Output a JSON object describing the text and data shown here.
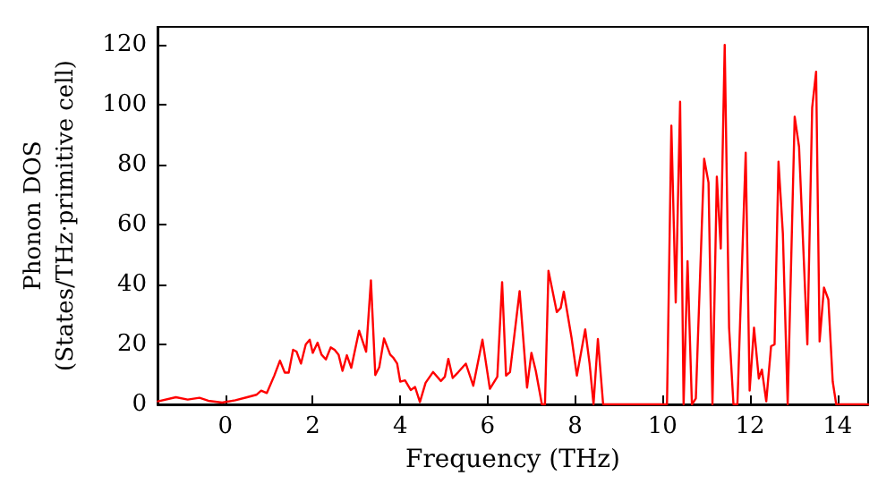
{
  "chart_data": {
    "type": "line",
    "xlabel": "Frequency (THz)",
    "ylabel": "Phonon DOS\n(States/THz·primitive cell)",
    "xlim": [
      -1.55,
      14.7
    ],
    "xticks": [
      0,
      2,
      4,
      6,
      8,
      10,
      12,
      14
    ],
    "ylim": [
      0,
      126
    ],
    "yticks": [
      0,
      20,
      40,
      60,
      80,
      100,
      120
    ],
    "marker": "none",
    "line_style": "solid",
    "series": [
      {
        "color": "#ff0000",
        "x": [
          -1.54,
          -1.13,
          -0.86,
          -0.59,
          -0.39,
          -0.07,
          0.23,
          0.5,
          0.71,
          0.82,
          0.95,
          1.12,
          1.25,
          1.36,
          1.45,
          1.55,
          1.63,
          1.73,
          1.84,
          1.93,
          2.0,
          2.11,
          2.2,
          2.3,
          2.41,
          2.5,
          2.59,
          2.68,
          2.78,
          2.88,
          3.06,
          3.22,
          3.33,
          3.43,
          3.52,
          3.63,
          3.77,
          3.84,
          3.93,
          4.0,
          4.11,
          4.24,
          4.34,
          4.45,
          4.58,
          4.75,
          4.93,
          5.02,
          5.1,
          5.2,
          5.33,
          5.5,
          5.67,
          5.88,
          6.05,
          6.22,
          6.33,
          6.42,
          6.51,
          6.73,
          6.9,
          7.0,
          7.1,
          7.24,
          7.31,
          7.39,
          7.58,
          7.67,
          7.74,
          7.92,
          8.04,
          8.23,
          8.33,
          8.42,
          8.52,
          8.64,
          10.1,
          10.2,
          10.3,
          10.4,
          10.48,
          10.57,
          10.67,
          10.76,
          10.95,
          11.05,
          11.14,
          11.24,
          11.33,
          11.42,
          11.52,
          11.62,
          11.71,
          11.9,
          11.99,
          12.09,
          12.2,
          12.27,
          12.37,
          12.48,
          12.56,
          12.65,
          12.75,
          12.86,
          13.02,
          13.12,
          13.31,
          13.42,
          13.51,
          13.59,
          13.69,
          13.79,
          13.89,
          13.97,
          14.7
        ],
        "values": [
          1,
          2.4,
          1.6,
          2.2,
          1.2,
          0.6,
          1.4,
          2.4,
          3.2,
          4.6,
          3.8,
          9.6,
          14.6,
          10.6,
          10.6,
          18.2,
          17.6,
          13.6,
          20,
          21.6,
          17.2,
          20.6,
          16.6,
          15,
          19,
          18.2,
          16.6,
          11.2,
          16.4,
          12.2,
          24.6,
          17.6,
          41.4,
          9.8,
          12.4,
          22,
          16.6,
          15.6,
          13.6,
          7.6,
          8,
          4.8,
          5.8,
          0.8,
          7.2,
          10.8,
          7.8,
          9.2,
          15.2,
          8.8,
          10.8,
          13.6,
          6.2,
          21.6,
          5.2,
          9.2,
          40.8,
          9.6,
          10.8,
          37.8,
          5.6,
          17.2,
          11.2,
          0,
          0,
          44.6,
          30.8,
          32.2,
          37.6,
          22,
          9.6,
          25,
          13.6,
          0,
          21.8,
          0,
          0,
          93,
          34,
          101,
          0,
          47.8,
          0,
          2,
          82,
          74,
          0,
          76,
          52,
          120,
          25.6,
          0,
          0,
          84,
          4.6,
          25.6,
          8.6,
          11.6,
          1,
          19.4,
          20,
          81,
          57,
          0,
          96,
          86,
          20,
          99,
          111,
          21,
          39,
          35,
          7.6,
          0,
          0
        ]
      }
    ]
  }
}
